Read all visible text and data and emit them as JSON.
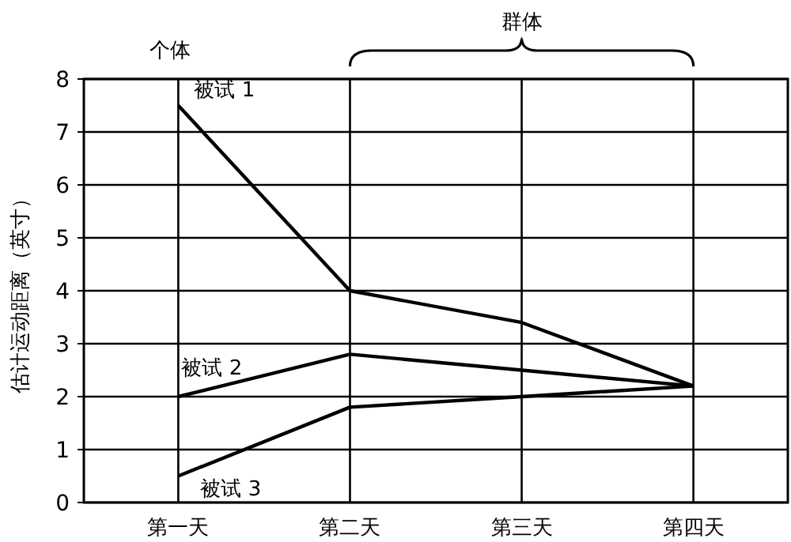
{
  "chart_data": {
    "type": "line",
    "ylabel": "估计运动距离（英寸）",
    "categories": [
      "第一天",
      "第二天",
      "第三天",
      "第四天"
    ],
    "series": [
      {
        "name": "被试 1",
        "color": "#000000",
        "values": [
          7.5,
          4.0,
          3.4,
          2.2
        ]
      },
      {
        "name": "被试 2",
        "color": "#000000",
        "values": [
          2.0,
          2.8,
          2.5,
          2.2
        ]
      },
      {
        "name": "被试 3",
        "color": "#000000",
        "values": [
          0.5,
          1.8,
          2.0,
          2.2
        ]
      }
    ],
    "ylim": [
      0,
      8
    ],
    "yticks": [
      0,
      1,
      2,
      3,
      4,
      5,
      6,
      7,
      8
    ],
    "grid": true,
    "marker": "none",
    "line_style": "solid",
    "annotations": [
      "个体",
      "群体"
    ]
  }
}
